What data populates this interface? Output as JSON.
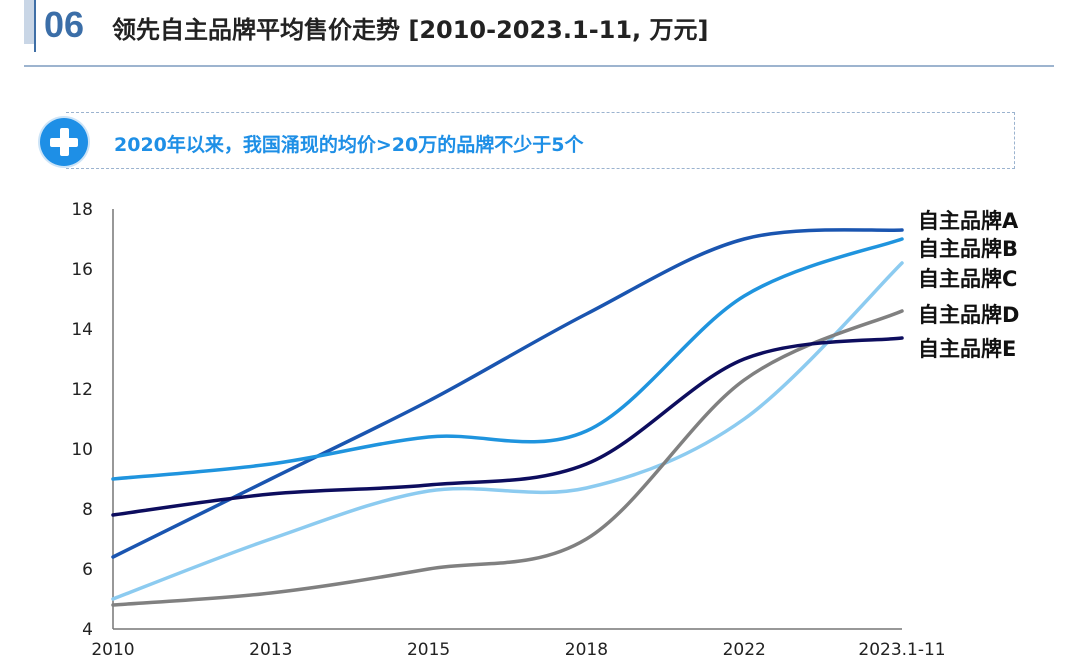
{
  "header": {
    "number": "06",
    "title": "领先自主品牌平均售价走势 [2010-2023.1-11, 万元]"
  },
  "callout": {
    "icon": "plus-icon",
    "text": "2020年以来，我国涌现的均价>20万的品牌不少于5个"
  },
  "chart_data": {
    "type": "line",
    "categories": [
      "2010",
      "2013",
      "2015",
      "2018",
      "2022",
      "2023.1-11"
    ],
    "ylim": [
      4,
      18
    ],
    "yticks": [
      4,
      6,
      8,
      10,
      12,
      14,
      16,
      18
    ],
    "grid": false,
    "legend": "right (end of lines)",
    "series": [
      {
        "name": "自主品牌A",
        "color": "#1a55b0",
        "values": [
          6.4,
          9.0,
          11.6,
          14.5,
          17.0,
          17.3
        ]
      },
      {
        "name": "自主品牌B",
        "color": "#1f94de",
        "values": [
          9.0,
          9.5,
          10.4,
          10.6,
          15.1,
          17.0
        ]
      },
      {
        "name": "自主品牌C",
        "color": "#8ccbf0",
        "values": [
          5.0,
          7.0,
          8.6,
          8.7,
          11.0,
          16.2
        ]
      },
      {
        "name": "自主品牌D",
        "color": "#808080",
        "values": [
          4.8,
          5.2,
          6.0,
          7.0,
          12.3,
          14.6
        ]
      },
      {
        "name": "自主品牌E",
        "color": "#0d0d5e",
        "values": [
          7.8,
          8.5,
          8.8,
          9.5,
          13.0,
          13.7
        ]
      }
    ]
  }
}
